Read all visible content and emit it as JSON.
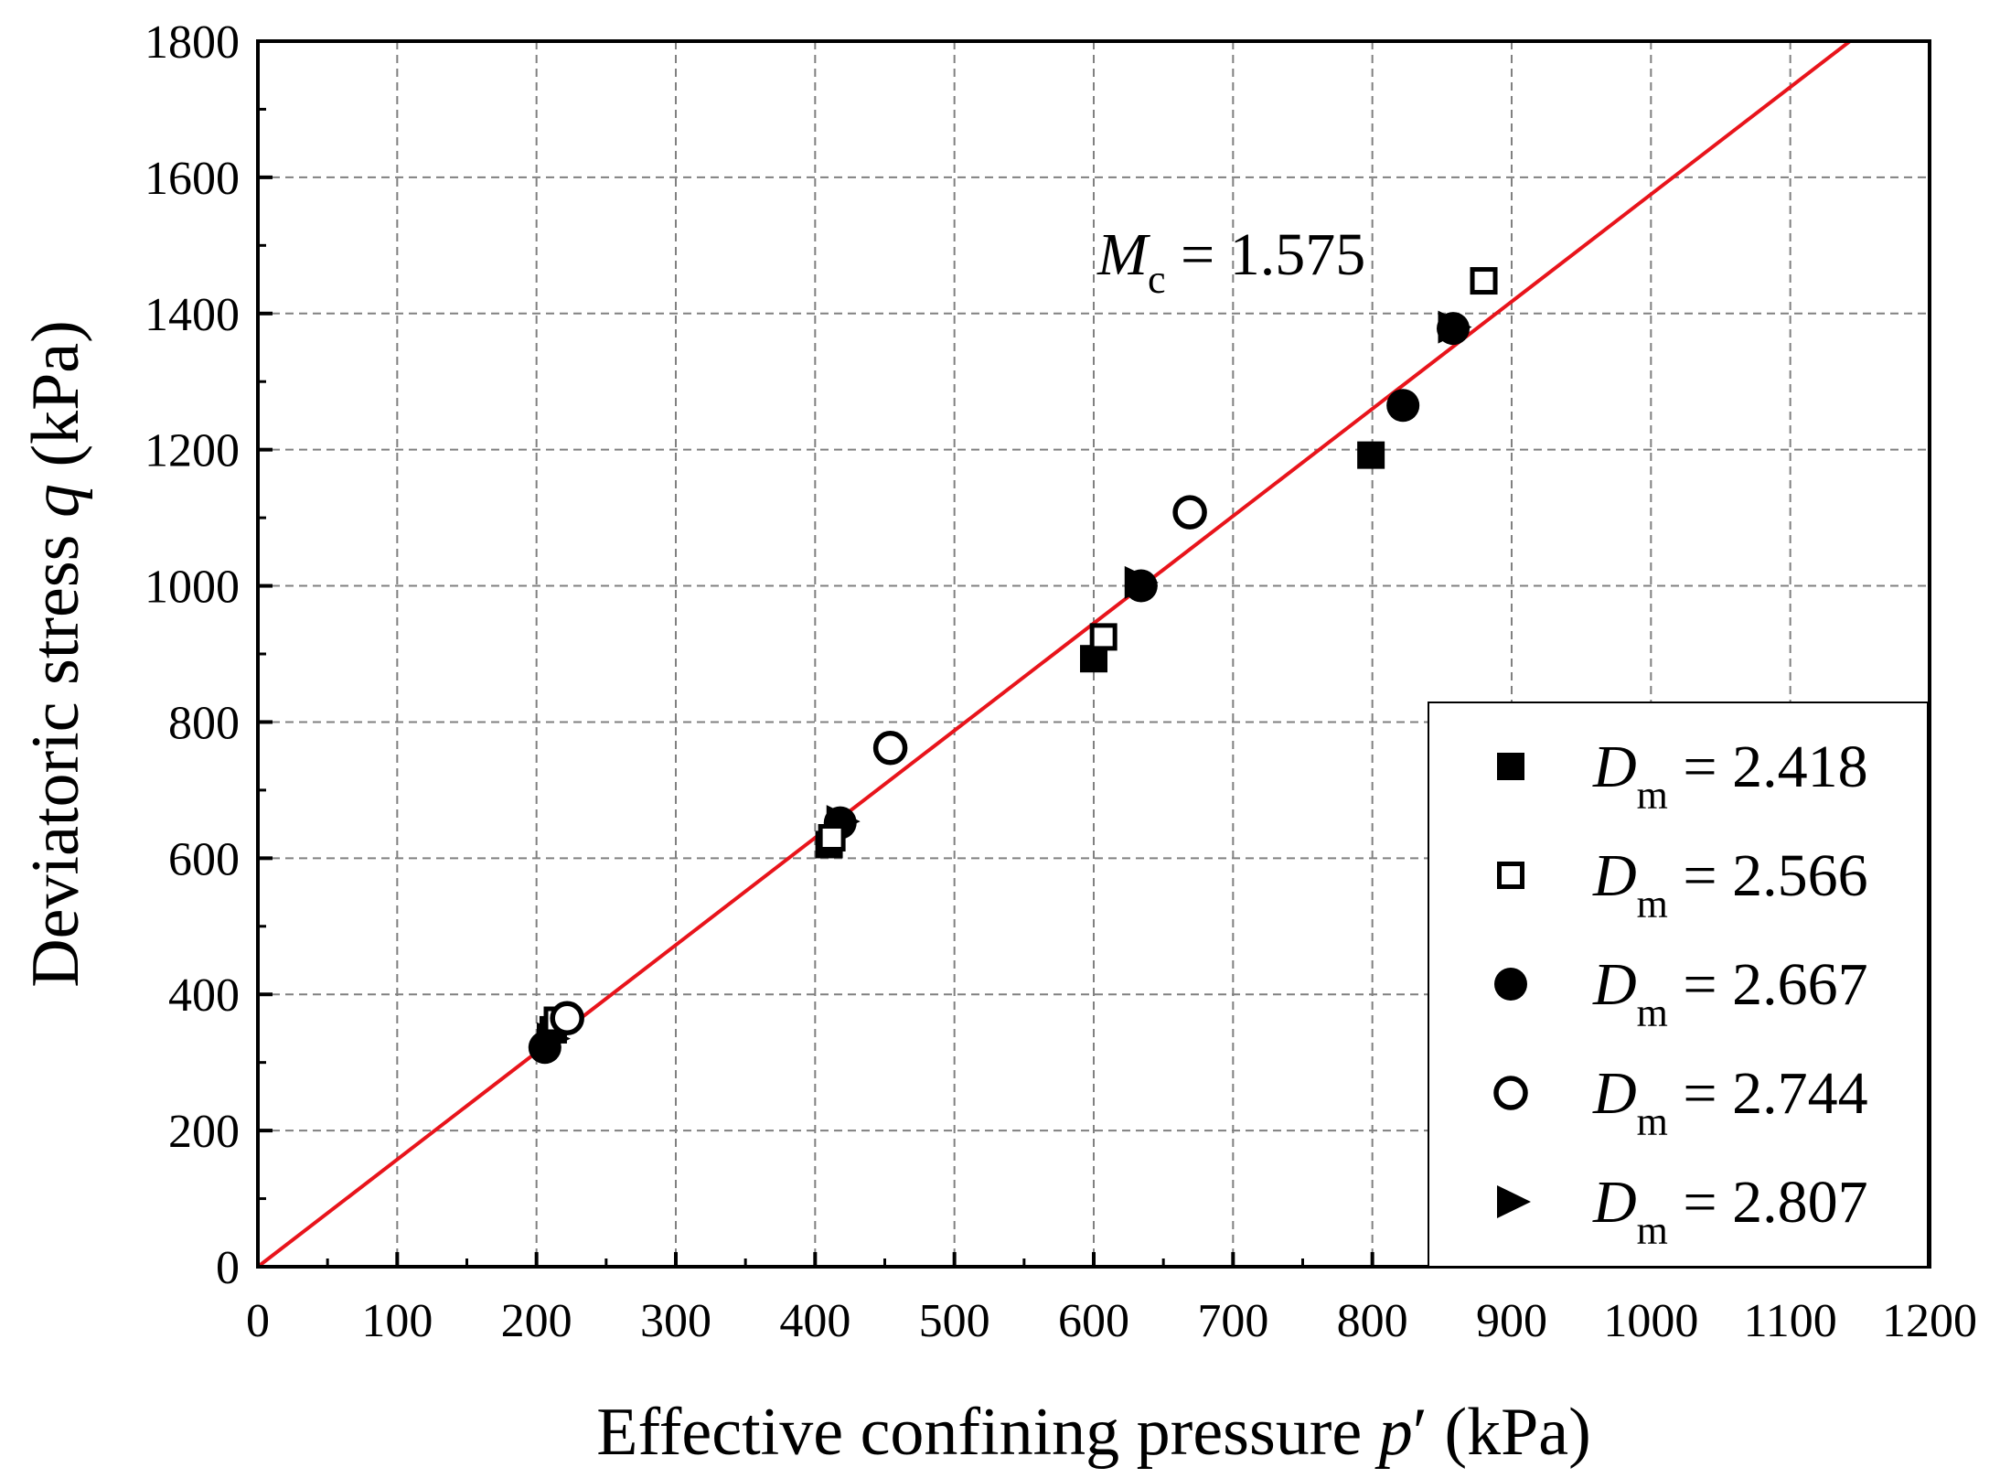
{
  "chart_data": {
    "type": "scatter",
    "title": "",
    "xlabel_prefix": "Effective confining pressure ",
    "xlabel_var": "p",
    "xlabel_prime": "′",
    "xlabel_suffix": " (kPa)",
    "ylabel_prefix": "Deviatoric stress ",
    "ylabel_var": "q",
    "ylabel_suffix": " (kPa)",
    "xlim": [
      0,
      1200
    ],
    "ylim": [
      0,
      1800
    ],
    "xticks": [
      0,
      100,
      200,
      300,
      400,
      500,
      600,
      700,
      800,
      900,
      1000,
      1100,
      1200
    ],
    "yticks": [
      0,
      200,
      400,
      600,
      800,
      1000,
      1200,
      1400,
      1600,
      1800
    ],
    "grid": true,
    "legend_position": "bottom-right",
    "fit_line": {
      "slope": 1.575,
      "intercept": 0,
      "color": "#e8141b"
    },
    "annotation": {
      "symbol": "M",
      "subscript": "c",
      "equals": " = 1.575"
    },
    "legend_symbol": "D",
    "legend_subscript": "m",
    "series": [
      {
        "name": "2.418",
        "label_text": " = 2.418",
        "marker": "square-filled",
        "points": [
          [
            212,
            348
          ],
          [
            410,
            620
          ],
          [
            600,
            893
          ],
          [
            799,
            1192
          ]
        ]
      },
      {
        "name": "2.566",
        "label_text": " = 2.566",
        "marker": "square-open",
        "points": [
          [
            215,
            362
          ],
          [
            412,
            630
          ],
          [
            607,
            925
          ],
          [
            880,
            1448
          ]
        ]
      },
      {
        "name": "2.667",
        "label_text": " = 2.667",
        "marker": "circle-filled",
        "points": [
          [
            206,
            322
          ],
          [
            418,
            652
          ],
          [
            634,
            1000
          ],
          [
            822,
            1265
          ],
          [
            858,
            1378
          ]
        ]
      },
      {
        "name": "2.744",
        "label_text": " = 2.744",
        "marker": "circle-open",
        "points": [
          [
            222,
            365
          ],
          [
            454,
            762
          ],
          [
            669,
            1108
          ]
        ]
      },
      {
        "name": "2.807",
        "label_text": " = 2.807",
        "marker": "triangle-right",
        "points": [
          [
            210,
            335
          ],
          [
            418,
            654
          ],
          [
            632,
            1005
          ],
          [
            857,
            1380
          ]
        ]
      }
    ]
  }
}
